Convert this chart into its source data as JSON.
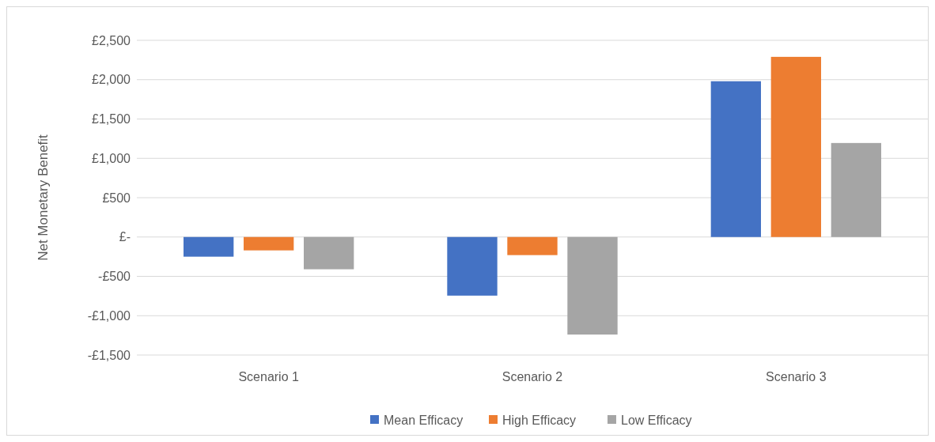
{
  "chart_data": {
    "type": "bar",
    "ylabel": "Net Monetary Benefit",
    "categories": [
      "Scenario 1",
      "Scenario 2",
      "Scenario 3"
    ],
    "series": [
      {
        "name": "Mean Efficacy",
        "color": "#4472c4",
        "values": [
          -250,
          -745,
          1980
        ]
      },
      {
        "name": "High Efficacy",
        "color": "#ed7d31",
        "values": [
          -170,
          -230,
          2290
        ]
      },
      {
        "name": "Low Efficacy",
        "color": "#a5a5a5",
        "values": [
          -410,
          -1240,
          1195
        ]
      }
    ],
    "ylim": [
      -1500,
      2500
    ],
    "yticks": [
      {
        "value": -1500,
        "label": "-£1,500"
      },
      {
        "value": -1000,
        "label": "-£1,000"
      },
      {
        "value": -500,
        "label": "-£500"
      },
      {
        "value": 0,
        "label": "£-"
      },
      {
        "value": 500,
        "label": "£500"
      },
      {
        "value": 1000,
        "label": "£1,000"
      },
      {
        "value": 1500,
        "label": "£1,500"
      },
      {
        "value": 2000,
        "label": "£2,000"
      },
      {
        "value": 2500,
        "label": "£2,500"
      }
    ],
    "grid": "y",
    "legend": "bottom"
  }
}
